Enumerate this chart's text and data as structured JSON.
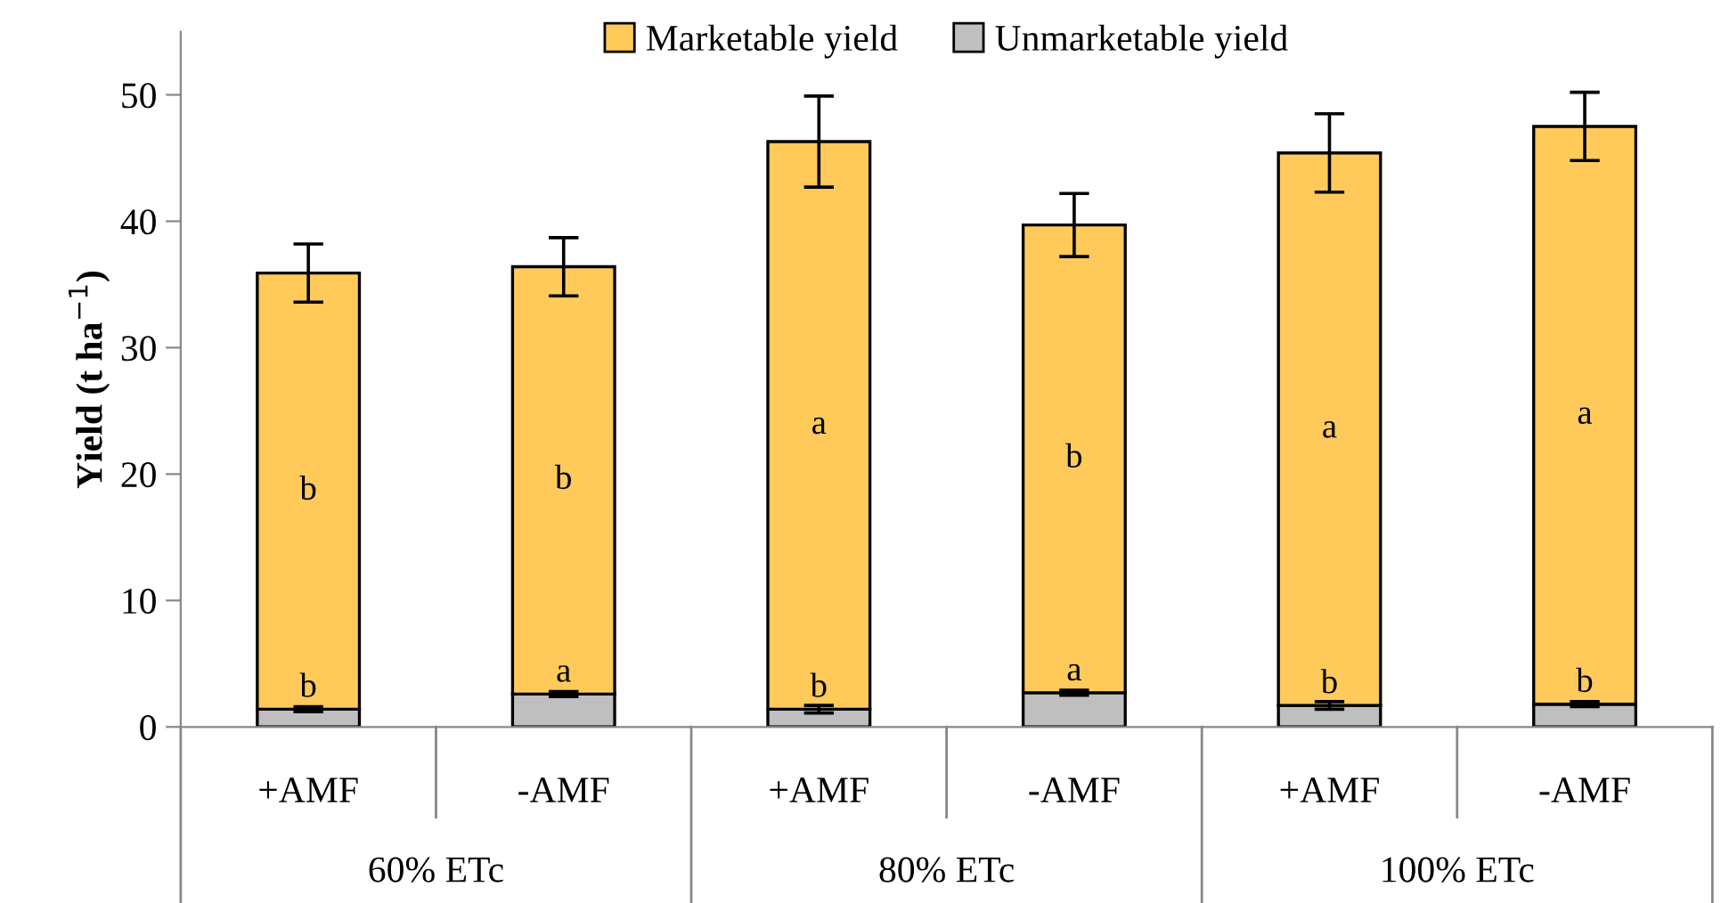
{
  "chart_data": {
    "type": "bar",
    "stacked": true,
    "ylabel": "Yield (t ha$^{−1}$)",
    "categories": [
      "+AMF",
      "-AMF",
      "+AMF",
      "-AMF",
      "+AMF",
      "-AMF"
    ],
    "series": [
      {
        "name": "Unmarketable yield",
        "color": "#bfbfbf",
        "values": [
          1.4,
          2.6,
          1.4,
          2.7,
          1.7,
          1.8
        ],
        "errors": [
          0.2,
          0.2,
          0.3,
          0.2,
          0.3,
          0.2
        ],
        "value_labels": [
          "b",
          "a",
          "b",
          "a",
          "b",
          "b"
        ]
      },
      {
        "name": "Marketable yield",
        "color": "#ffca5a",
        "values": [
          34.5,
          33.8,
          44.9,
          37.0,
          43.7,
          45.7
        ],
        "errors": [
          2.3,
          2.3,
          3.6,
          2.5,
          3.1,
          2.7
        ],
        "value_labels": [
          "b",
          "b",
          "a",
          "b",
          "a",
          "a"
        ]
      }
    ],
    "annotations": [
      "60% ETc",
      "80% ETc",
      "100% ETc"
    ],
    "ylim": [
      0,
      55
    ],
    "yticks": [
      0,
      10,
      20,
      30,
      40,
      50
    ],
    "grid": false,
    "legend": "top"
  }
}
